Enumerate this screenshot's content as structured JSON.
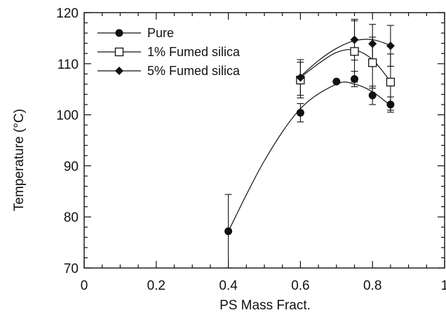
{
  "chart_data": {
    "type": "scatter",
    "title": "",
    "xlabel": "PS Mass Fract.",
    "ylabel": "Temperature (°C)",
    "xlim": [
      0,
      1
    ],
    "ylim": [
      70,
      120
    ],
    "x_ticks": [
      0,
      0.2,
      0.4,
      0.6,
      0.8,
      1
    ],
    "x_tick_labels": [
      "0",
      "0.2",
      "0.4",
      "0.6",
      "0.8",
      "1"
    ],
    "y_ticks": [
      70,
      80,
      90,
      100,
      110,
      120
    ],
    "y_tick_labels": [
      "70",
      "80",
      "90",
      "100",
      "110",
      "120"
    ],
    "grid": false,
    "legend_position": "top-left",
    "series": [
      {
        "name": "Pure",
        "marker": "filled-circle",
        "color": "#111111",
        "points": [
          {
            "x": 0.4,
            "y": 77.2,
            "err": 7.2
          },
          {
            "x": 0.6,
            "y": 100.4,
            "err": 1.8
          },
          {
            "x": 0.7,
            "y": 106.5,
            "err": 0
          },
          {
            "x": 0.75,
            "y": 107.0,
            "err": 1.5
          },
          {
            "x": 0.8,
            "y": 103.8,
            "err": 1.8
          },
          {
            "x": 0.85,
            "y": 102.0,
            "err": 1.5
          }
        ],
        "fit": [
          [
            0.4,
            77.2
          ],
          [
            0.5,
            91.0
          ],
          [
            0.6,
            101.2
          ],
          [
            0.7,
            106.0
          ],
          [
            0.75,
            106.0
          ],
          [
            0.8,
            104.5
          ],
          [
            0.85,
            101.8
          ]
        ]
      },
      {
        "name": "1% Fumed silica",
        "marker": "open-square",
        "color": "#111111",
        "points": [
          {
            "x": 0.6,
            "y": 106.8,
            "err": 3.5
          },
          {
            "x": 0.75,
            "y": 112.4,
            "err": 6.0
          },
          {
            "x": 0.8,
            "y": 110.2,
            "err": 5.0
          },
          {
            "x": 0.85,
            "y": 106.4,
            "err": 5.5
          }
        ],
        "fit": [
          [
            0.6,
            107.3
          ],
          [
            0.65,
            110.0
          ],
          [
            0.7,
            112.2
          ],
          [
            0.75,
            112.7
          ],
          [
            0.8,
            110.8
          ],
          [
            0.85,
            106.5
          ]
        ]
      },
      {
        "name": "5% Fumed silica",
        "marker": "filled-diamond",
        "color": "#111111",
        "points": [
          {
            "x": 0.6,
            "y": 107.3,
            "err": 3.5
          },
          {
            "x": 0.75,
            "y": 114.7,
            "err": 4.0
          },
          {
            "x": 0.8,
            "y": 113.9,
            "err": 3.8
          },
          {
            "x": 0.85,
            "y": 113.5,
            "err": 4.0
          }
        ],
        "fit": [
          [
            0.6,
            107.5
          ],
          [
            0.65,
            110.6
          ],
          [
            0.7,
            113.0
          ],
          [
            0.75,
            114.5
          ],
          [
            0.8,
            114.7
          ],
          [
            0.85,
            113.6
          ]
        ]
      }
    ]
  }
}
